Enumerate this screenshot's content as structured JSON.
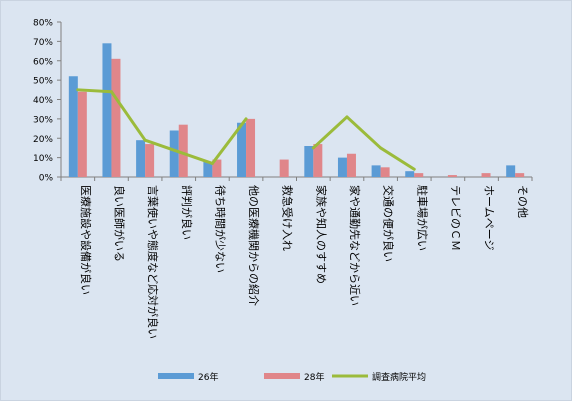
{
  "chart_data": {
    "type": "bar",
    "categories": [
      "医療施設や設備が良い",
      "良い医師がいる",
      "言葉使いや態度など応対が良い",
      "評判が良い",
      "待ち時間が少ない",
      "他の医療機関からの紹介",
      "救急受け入れ",
      "家族や知人のすすめ",
      "家や通勤先などから近い",
      "交通の便が良い",
      "駐車場が広い",
      "テレビのＣＭ",
      "ホームページ",
      "その他"
    ],
    "series": [
      {
        "name": "26年",
        "type": "bar",
        "color": "#5b9bd5",
        "values": [
          52,
          69,
          19,
          24,
          8,
          28,
          0,
          16,
          10,
          6,
          3,
          0,
          0,
          6
        ]
      },
      {
        "name": "28年",
        "type": "bar",
        "color": "#e0868a",
        "values": [
          44,
          61,
          17,
          27,
          9,
          30,
          9,
          17,
          12,
          5,
          2,
          1,
          2,
          2
        ]
      },
      {
        "name": "調査病院平均",
        "type": "line",
        "color": "#9bbb3b",
        "values": [
          45,
          44,
          19,
          13,
          7,
          30,
          null,
          15,
          31,
          15,
          4,
          null,
          null,
          null
        ]
      }
    ],
    "yticks": [
      "0%",
      "10%",
      "20%",
      "30%",
      "40%",
      "50%",
      "60%",
      "70%",
      "80%"
    ],
    "ylim": [
      0,
      80
    ],
    "legend": "bottom",
    "grid": false
  }
}
